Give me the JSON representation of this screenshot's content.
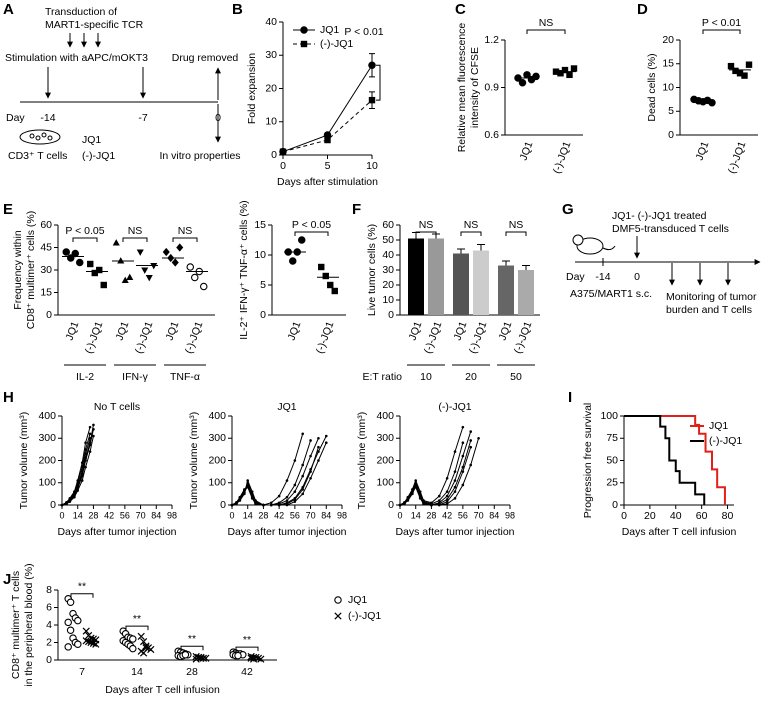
{
  "panel_labels": [
    "A",
    "B",
    "C",
    "D",
    "E",
    "F",
    "G",
    "H",
    "I",
    "J"
  ],
  "diagram_a": {
    "transduction": [
      "Transduction of",
      "MART1-specific TCR"
    ],
    "stimulation": "Stimulation with aAPC/mOKT3",
    "drug_removed": "Drug removed",
    "day": "Day",
    "days": [
      "-14",
      "-7",
      "0"
    ],
    "cells": "CD3⁺ T cells",
    "treatments": [
      "JQ1",
      "(-)-JQ1"
    ],
    "readout": "In vitro properties"
  },
  "diagram_g": {
    "treated": [
      "JQ1- (-)-JQ1 treated",
      "DMF5-transduced T cells"
    ],
    "day": "Day",
    "days": [
      "-14",
      "0"
    ],
    "tumor": "A375/MART1 s.c.",
    "monitoring": [
      "Monitoring of tumor",
      "burden and T cells"
    ]
  },
  "chart_data": [
    {
      "type": "line",
      "x": [
        0,
        5,
        10
      ],
      "xlim": [
        0,
        10
      ],
      "xticks": [
        0,
        5,
        10
      ],
      "ylim": [
        0,
        40
      ],
      "yticks": [
        0,
        10,
        20,
        30,
        40
      ],
      "x_label": "Days after stimulation",
      "y_label": "Fold expansion",
      "annotation": "P < 0.01",
      "series": [
        {
          "name": "JQ1",
          "color": "#000000",
          "line_style": "solid",
          "marker": "circle",
          "values": [
            1,
            6,
            27
          ],
          "errors": [
            0.3,
            0.6,
            3.5
          ]
        },
        {
          "name": "(-)-JQ1",
          "color": "#000000",
          "line_style": "dashed",
          "marker": "square",
          "values": [
            1,
            4.5,
            16.5
          ],
          "errors": [
            0.3,
            0.5,
            2.5
          ]
        }
      ]
    },
    {
      "type": "dot",
      "y_label": [
        "Relative mean fluorescence",
        "intensity of CFSE"
      ],
      "ylim": [
        0.6,
        1.2
      ],
      "yticks": [
        0.6,
        0.9,
        1.2
      ],
      "annotations": [
        "NS"
      ],
      "groups": [
        {
          "name": "JQ1",
          "marker": "circle",
          "values": [
            0.96,
            0.93,
            0.98,
            0.95,
            0.97
          ],
          "mean": 0.96
        },
        {
          "name": "(-)-JQ1",
          "marker": "square",
          "values": [
            1.0,
            0.99,
            1.01,
            0.98,
            1.02
          ],
          "mean": 1.0
        }
      ]
    },
    {
      "type": "dot",
      "y_label": "Dead cells (%)",
      "ylim": [
        0,
        20
      ],
      "yticks": [
        0,
        5,
        10,
        15,
        20
      ],
      "annotations": [
        "P < 0.01"
      ],
      "groups": [
        {
          "name": "JQ1",
          "marker": "circle",
          "values": [
            7.5,
            7.2,
            7.0,
            7.3,
            6.8
          ],
          "mean": 7.2
        },
        {
          "name": "(-)-JQ1",
          "marker": "square",
          "values": [
            14.5,
            13.5,
            13.0,
            12.5,
            14.8
          ],
          "mean": 13.7
        }
      ]
    },
    {
      "type": "dot",
      "y_label": [
        "Frequency within",
        "CD8⁺ multimer⁺ cells (%)"
      ],
      "ylim": [
        0,
        60
      ],
      "yticks": [
        0,
        15,
        30,
        45,
        60
      ],
      "annotations": [
        "P < 0.05",
        "NS",
        "NS"
      ],
      "sections": [
        "IL-2",
        "IFN-γ",
        "TNF-α"
      ],
      "groups": [
        {
          "name": "JQ1",
          "marker": "circle",
          "values": [
            42,
            38,
            41,
            35
          ],
          "mean": 39
        },
        {
          "name": "(-)-JQ1",
          "marker": "square",
          "values": [
            34,
            28,
            30,
            20
          ],
          "mean": 29
        },
        {
          "name": "JQ1",
          "marker": "triangle",
          "values": [
            48,
            36,
            23,
            25
          ],
          "mean": 36
        },
        {
          "name": "(-)-JQ1",
          "marker": "triangle-down",
          "values": [
            42,
            30,
            25,
            33
          ],
          "mean": 33
        },
        {
          "name": "JQ1",
          "marker": "diamond",
          "values": [
            42,
            38,
            35,
            45
          ],
          "mean": 38
        },
        {
          "name": "(-)-JQ1",
          "marker": "circle-open",
          "values": [
            32,
            25,
            29,
            19
          ],
          "mean": 29
        }
      ]
    },
    {
      "type": "dot",
      "y_label": "IL-2⁺ IFN-γ⁺ TNF-α⁺ cells (%)",
      "ylim": [
        0,
        15
      ],
      "yticks": [
        0,
        5,
        10,
        15
      ],
      "annotations": [
        "P < 0.05"
      ],
      "groups": [
        {
          "name": "JQ1",
          "marker": "circle",
          "values": [
            10.5,
            9,
            10.5,
            12.5
          ],
          "mean": 10.5
        },
        {
          "name": "(-)-JQ1",
          "marker": "square",
          "values": [
            8,
            6.5,
            5,
            4
          ],
          "mean": 6.3
        }
      ]
    },
    {
      "type": "bar",
      "y_label": "Live tumor cells (%)",
      "ylim": [
        0,
        60
      ],
      "yticks": [
        0,
        10,
        20,
        30,
        40,
        50,
        60
      ],
      "annotations": [
        "NS",
        "NS",
        "NS"
      ],
      "sections": [
        "10",
        "20",
        "50"
      ],
      "section_title": "E:T ratio",
      "groups": [
        {
          "name": "JQ1",
          "value": 51,
          "error": 4,
          "color": "#000000"
        },
        {
          "name": "(-)-JQ1",
          "value": 51,
          "error": 3,
          "color": "#999999"
        },
        {
          "name": "JQ1",
          "value": 41,
          "error": 3,
          "color": "#555555"
        },
        {
          "name": "(-)-JQ1",
          "value": 43,
          "error": 4,
          "color": "#cccccc"
        },
        {
          "name": "JQ1",
          "value": 33,
          "error": 3,
          "color": "#666666"
        },
        {
          "name": "(-)-JQ1",
          "value": 30,
          "error": 3,
          "color": "#aaaaaa"
        }
      ]
    },
    {
      "type": "line",
      "title": "No T cells",
      "x_label": "Days after tumor injection",
      "y_label": "Tumor volume (mm³)",
      "xlim": [
        0,
        98
      ],
      "xticks": [
        0,
        14,
        28,
        42,
        56,
        70,
        84,
        98
      ],
      "ylim": [
        0,
        400
      ],
      "yticks": [
        0,
        100,
        200,
        300,
        400
      ],
      "marker": "dot",
      "color": "#000000",
      "x": [
        0,
        4,
        7,
        11,
        14,
        18,
        21,
        25,
        28
      ],
      "series": [
        {
          "values": [
            0,
            10,
            25,
            50,
            90,
            150,
            230,
            300,
            null
          ]
        },
        {
          "values": [
            0,
            8,
            20,
            45,
            80,
            140,
            210,
            280,
            360
          ]
        },
        {
          "values": [
            0,
            12,
            30,
            60,
            110,
            190,
            280,
            350,
            null
          ]
        },
        {
          "values": [
            0,
            5,
            15,
            35,
            65,
            110,
            170,
            240,
            310
          ]
        },
        {
          "values": [
            0,
            10,
            28,
            55,
            100,
            170,
            250,
            320,
            null
          ]
        },
        {
          "values": [
            0,
            7,
            18,
            40,
            75,
            130,
            200,
            270,
            340
          ]
        }
      ]
    },
    {
      "type": "line",
      "title": "JQ1",
      "x_label": "Days after tumor injection",
      "y_label": "Tumor volume (mm³)",
      "xlim": [
        0,
        98
      ],
      "xticks": [
        0,
        14,
        28,
        42,
        56,
        70,
        84,
        98
      ],
      "ylim": [
        0,
        400
      ],
      "yticks": [
        0,
        100,
        200,
        300,
        400
      ],
      "marker": "dot",
      "color": "#000000",
      "x": [
        0,
        4,
        7,
        11,
        14,
        18,
        21,
        28,
        35,
        42,
        49,
        56,
        63,
        70,
        77,
        84
      ],
      "series": [
        {
          "values": [
            0,
            10,
            30,
            60,
            90,
            40,
            10,
            0,
            0,
            5,
            20,
            60,
            130,
            220,
            300,
            null
          ]
        },
        {
          "values": [
            0,
            8,
            25,
            55,
            100,
            50,
            15,
            0,
            0,
            0,
            10,
            30,
            80,
            160,
            240,
            310
          ]
        },
        {
          "values": [
            0,
            12,
            35,
            70,
            80,
            30,
            5,
            0,
            10,
            40,
            110,
            200,
            320,
            null,
            null,
            null
          ]
        },
        {
          "values": [
            0,
            6,
            20,
            50,
            110,
            60,
            20,
            0,
            0,
            0,
            0,
            15,
            50,
            120,
            200,
            280
          ]
        },
        {
          "values": [
            0,
            10,
            30,
            65,
            95,
            45,
            10,
            0,
            0,
            10,
            35,
            90,
            180,
            290,
            null,
            null
          ]
        },
        {
          "values": [
            0,
            9,
            28,
            58,
            85,
            35,
            8,
            0,
            0,
            0,
            5,
            25,
            70,
            150,
            260,
            null
          ]
        }
      ]
    },
    {
      "type": "line",
      "title": "(-)-JQ1",
      "x_label": "Days after tumor injection",
      "y_label": "Tumor volume (mm³)",
      "xlim": [
        0,
        98
      ],
      "xticks": [
        0,
        14,
        28,
        42,
        56,
        70,
        84,
        98
      ],
      "ylim": [
        0,
        400
      ],
      "yticks": [
        0,
        100,
        200,
        300,
        400
      ],
      "marker": "dot",
      "color": "#000000",
      "x": [
        0,
        4,
        7,
        11,
        14,
        18,
        21,
        28,
        35,
        42,
        49,
        56,
        63,
        70,
        77,
        84
      ],
      "series": [
        {
          "values": [
            0,
            10,
            30,
            60,
            100,
            50,
            15,
            5,
            20,
            60,
            150,
            280,
            null,
            null,
            null,
            null
          ]
        },
        {
          "values": [
            0,
            8,
            25,
            55,
            90,
            40,
            10,
            0,
            10,
            40,
            110,
            220,
            330,
            null,
            null,
            null
          ]
        },
        {
          "values": [
            0,
            12,
            35,
            70,
            110,
            60,
            20,
            10,
            40,
            120,
            240,
            350,
            null,
            null,
            null,
            null
          ]
        },
        {
          "values": [
            0,
            6,
            20,
            50,
            85,
            35,
            8,
            0,
            0,
            15,
            60,
            150,
            260,
            null,
            null,
            null
          ]
        },
        {
          "values": [
            0,
            10,
            28,
            62,
            95,
            45,
            12,
            0,
            5,
            25,
            80,
            170,
            290,
            null,
            null,
            null
          ]
        },
        {
          "values": [
            0,
            9,
            26,
            55,
            80,
            30,
            5,
            0,
            0,
            5,
            30,
            90,
            180,
            300,
            null,
            null
          ]
        }
      ]
    },
    {
      "type": "step",
      "x_label": "Days after T cell infusion",
      "y_label": "Progression free survival",
      "legend": "top-right",
      "xlim": [
        0,
        85
      ],
      "xticks": [
        0,
        20,
        40,
        60,
        80
      ],
      "ylim": [
        0,
        100
      ],
      "yticks": [
        0,
        25,
        50,
        75,
        100
      ],
      "series": [
        {
          "name": "JQ1",
          "color": "#e0201b",
          "x": [
            0,
            55,
            58,
            63,
            68,
            72,
            78
          ],
          "values": [
            100,
            90,
            80,
            60,
            40,
            20,
            0
          ]
        },
        {
          "name": "(-)-JQ1",
          "color": "#000000",
          "x": [
            0,
            28,
            32,
            35,
            40,
            43,
            55,
            62
          ],
          "values": [
            100,
            88,
            75,
            50,
            38,
            25,
            12,
            0
          ]
        }
      ]
    },
    {
      "type": "grouped-scatter",
      "x_label": "Days after T cell infusion",
      "y_label": [
        "CD8⁺ multimer⁺ T cells",
        "in the peripheral blood (%)"
      ],
      "categories": [
        "7",
        "14",
        "28",
        "42"
      ],
      "ylim": [
        0,
        8
      ],
      "yticks": [
        0,
        2,
        4,
        6,
        8
      ],
      "annotations": [
        "**",
        "**",
        "**",
        "**"
      ],
      "legend": "top",
      "series": [
        {
          "name": "JQ1",
          "marker": "circle-open",
          "color": "#000000",
          "values": [
            [
              7.0,
              6.6,
              5.3,
              4.8,
              4.5,
              4.3,
              3.4,
              2.5,
              2.0,
              1.8,
              1.5
            ],
            [
              3.3,
              3.0,
              2.6,
              2.5,
              2.4,
              2.2,
              2.0,
              1.8,
              1.6,
              1.3
            ],
            [
              1.0,
              0.9,
              0.8,
              0.7,
              0.6,
              0.5,
              0.4,
              0.5,
              0.6
            ],
            [
              0.9,
              0.8,
              0.7,
              0.7,
              0.6,
              0.6,
              0.5,
              0.5
            ]
          ]
        },
        {
          "name": "(-)-JQ1",
          "marker": "x",
          "color": "#000000",
          "values": [
            [
              3.3,
              2.8,
              2.5,
              2.4,
              2.3,
              2.2,
              2.1,
              2.0,
              1.9,
              1.8
            ],
            [
              2.7,
              2.1,
              1.6,
              1.4,
              1.2,
              1.0,
              0.8,
              1.4
            ],
            [
              0.4,
              0.3,
              0.3,
              0.2,
              0.2,
              0.1,
              0.3,
              0.2
            ],
            [
              0.4,
              0.3,
              0.3,
              0.2,
              0.1,
              0.2,
              0.1
            ]
          ]
        }
      ]
    }
  ]
}
